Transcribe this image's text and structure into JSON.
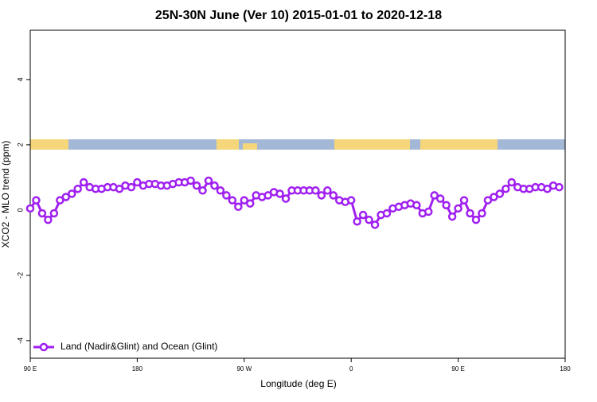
{
  "chart_data": {
    "type": "line",
    "title": "25N-30N June (Ver 10)   2015-01-01 to 2020-12-18",
    "xlabel": "Longitude (deg E)",
    "ylabel": "XCO2 - MLO trend (ppm)",
    "x": [
      90,
      95,
      100,
      105,
      110,
      115,
      120,
      125,
      130,
      135,
      140,
      145,
      150,
      155,
      160,
      165,
      170,
      175,
      180,
      185,
      190,
      195,
      200,
      205,
      210,
      215,
      220,
      225,
      230,
      235,
      240,
      245,
      250,
      255,
      260,
      265,
      270,
      275,
      280,
      285,
      290,
      295,
      300,
      305,
      310,
      315,
      320,
      325,
      330,
      335,
      340,
      345,
      350,
      355,
      360,
      365,
      370,
      375,
      380,
      385,
      390,
      395,
      400,
      405,
      410,
      415,
      420,
      425,
      430,
      435,
      440,
      445,
      450,
      455,
      460,
      465,
      470,
      475,
      480,
      485,
      490,
      495,
      500,
      505,
      510,
      515,
      520,
      525,
      530,
      535
    ],
    "series": [
      {
        "name": "Land (Nadir&Glint) and Ocean (Glint)",
        "color": "#a020f0",
        "values": [
          0.05,
          0.3,
          -0.1,
          -0.3,
          -0.1,
          0.3,
          0.4,
          0.5,
          0.65,
          0.85,
          0.7,
          0.65,
          0.65,
          0.7,
          0.7,
          0.65,
          0.75,
          0.7,
          0.85,
          0.75,
          0.8,
          0.8,
          0.75,
          0.75,
          0.8,
          0.85,
          0.85,
          0.9,
          0.75,
          0.6,
          0.9,
          0.75,
          0.6,
          0.45,
          0.3,
          0.1,
          0.3,
          0.2,
          0.45,
          0.4,
          0.45,
          0.55,
          0.5,
          0.35,
          0.6,
          0.6,
          0.6,
          0.6,
          0.6,
          0.45,
          0.6,
          0.45,
          0.3,
          0.25,
          0.3,
          -0.35,
          -0.15,
          -0.3,
          -0.45,
          -0.15,
          -0.1,
          0.05,
          0.1,
          0.15,
          0.2,
          0.15,
          -0.1,
          -0.05,
          0.45,
          0.35,
          0.15,
          -0.2,
          0.05,
          0.3,
          -0.1,
          -0.3,
          -0.1,
          0.3,
          0.4,
          0.5,
          0.65,
          0.85,
          0.7,
          0.65,
          0.65,
          0.7,
          0.7,
          0.65,
          0.75,
          0.7
        ]
      }
    ],
    "xlim": [
      90,
      540
    ],
    "xticks": [
      {
        "value": 90,
        "label": "90 E"
      },
      180,
      {
        "value": 270,
        "label": "90 W"
      },
      {
        "value": 360,
        "label": "0"
      },
      {
        "value": 450,
        "label": "90 E"
      },
      {
        "value": 540,
        "label": "180"
      }
    ],
    "ylim": [
      -4.54,
      5.51
    ],
    "yticks": [
      -4,
      -2,
      0,
      2,
      4
    ],
    "legend": "bottom-left"
  }
}
